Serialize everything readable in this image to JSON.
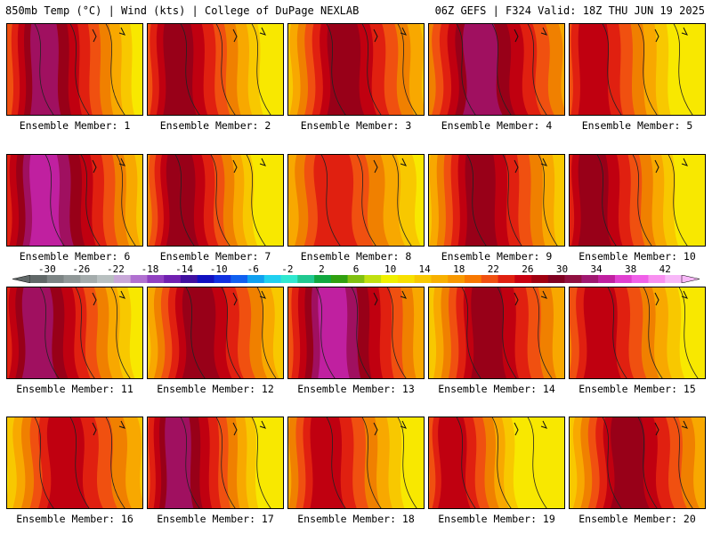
{
  "header": {
    "left_title": "850mb Temp (°C) | Wind (kts) | College of DuPage NEXLAB",
    "right_title": "06Z GEFS | F324 Valid: 18Z THU JUN 19 2025"
  },
  "colorbar": {
    "tick_labels": [
      "-30",
      "-26",
      "-22",
      "-18",
      "-14",
      "-10",
      "-6",
      "-2",
      "2",
      "6",
      "10",
      "14",
      "18",
      "22",
      "26",
      "30",
      "34",
      "38",
      "42"
    ],
    "colors": [
      "#606868",
      "#7c8484",
      "#909898",
      "#a4acac",
      "#b8c0c0",
      "#c8a8d8",
      "#b070d0",
      "#9040c0",
      "#7020b0",
      "#4010a0",
      "#1010c0",
      "#1030e0",
      "#1060f0",
      "#10a0f0",
      "#20d0f0",
      "#30e8d0",
      "#20c890",
      "#10a840",
      "#30a010",
      "#80c010",
      "#c0e010",
      "#f0f000",
      "#f8e000",
      "#f8c800",
      "#f8b000",
      "#f89800",
      "#f87800",
      "#f05010",
      "#e02010",
      "#c80010",
      "#a00010",
      "#800020",
      "#901040",
      "#a01870",
      "#c020a0",
      "#e040d0",
      "#f060e8",
      "#f890f0",
      "#f8b8f8"
    ]
  },
  "panels": [
    {
      "label": "Ensemble Member: 1",
      "heat": 0.7,
      "hot_x": 0.25,
      "spread": 0.55
    },
    {
      "label": "Ensemble Member: 2",
      "heat": 0.62,
      "hot_x": 0.2,
      "spread": 0.5
    },
    {
      "label": "Ensemble Member: 3",
      "heat": 0.66,
      "hot_x": 0.38,
      "spread": 0.6
    },
    {
      "label": "Ensemble Member: 4",
      "heat": 0.7,
      "hot_x": 0.35,
      "spread": 0.75
    },
    {
      "label": "Ensemble Member: 5",
      "heat": 0.55,
      "hot_x": 0.15,
      "spread": 0.45
    },
    {
      "label": "Ensemble Member: 6",
      "heat": 0.82,
      "hot_x": 0.25,
      "spread": 0.7
    },
    {
      "label": "Ensemble Member: 7",
      "heat": 0.58,
      "hot_x": 0.22,
      "spread": 0.4
    },
    {
      "label": "Ensemble Member: 8",
      "heat": 0.4,
      "hot_x": 0.3,
      "spread": 0.55
    },
    {
      "label": "Ensemble Member: 9",
      "heat": 0.6,
      "hot_x": 0.35,
      "spread": 0.55
    },
    {
      "label": "Ensemble Member: 10",
      "heat": 0.58,
      "hot_x": 0.15,
      "spread": 0.5
    },
    {
      "label": "Ensemble Member: 11",
      "heat": 0.72,
      "hot_x": 0.2,
      "spread": 0.6
    },
    {
      "label": "Ensemble Member: 12",
      "heat": 0.65,
      "hot_x": 0.35,
      "spread": 0.55
    },
    {
      "label": "Ensemble Member: 13",
      "heat": 0.85,
      "hot_x": 0.3,
      "spread": 0.7
    },
    {
      "label": "Ensemble Member: 14",
      "heat": 0.62,
      "hot_x": 0.4,
      "spread": 0.6
    },
    {
      "label": "Ensemble Member: 15",
      "heat": 0.55,
      "hot_x": 0.2,
      "spread": 0.5
    },
    {
      "label": "Ensemble Member: 16",
      "heat": 0.52,
      "hot_x": 0.4,
      "spread": 0.6
    },
    {
      "label": "Ensemble Member: 17",
      "heat": 0.7,
      "hot_x": 0.2,
      "spread": 0.45
    },
    {
      "label": "Ensemble Member: 18",
      "heat": 0.5,
      "hot_x": 0.25,
      "spread": 0.45
    },
    {
      "label": "Ensemble Member: 19",
      "heat": 0.45,
      "hot_x": 0.15,
      "spread": 0.3
    },
    {
      "label": "Ensemble Member: 20",
      "heat": 0.58,
      "hot_x": 0.4,
      "spread": 0.6
    }
  ]
}
